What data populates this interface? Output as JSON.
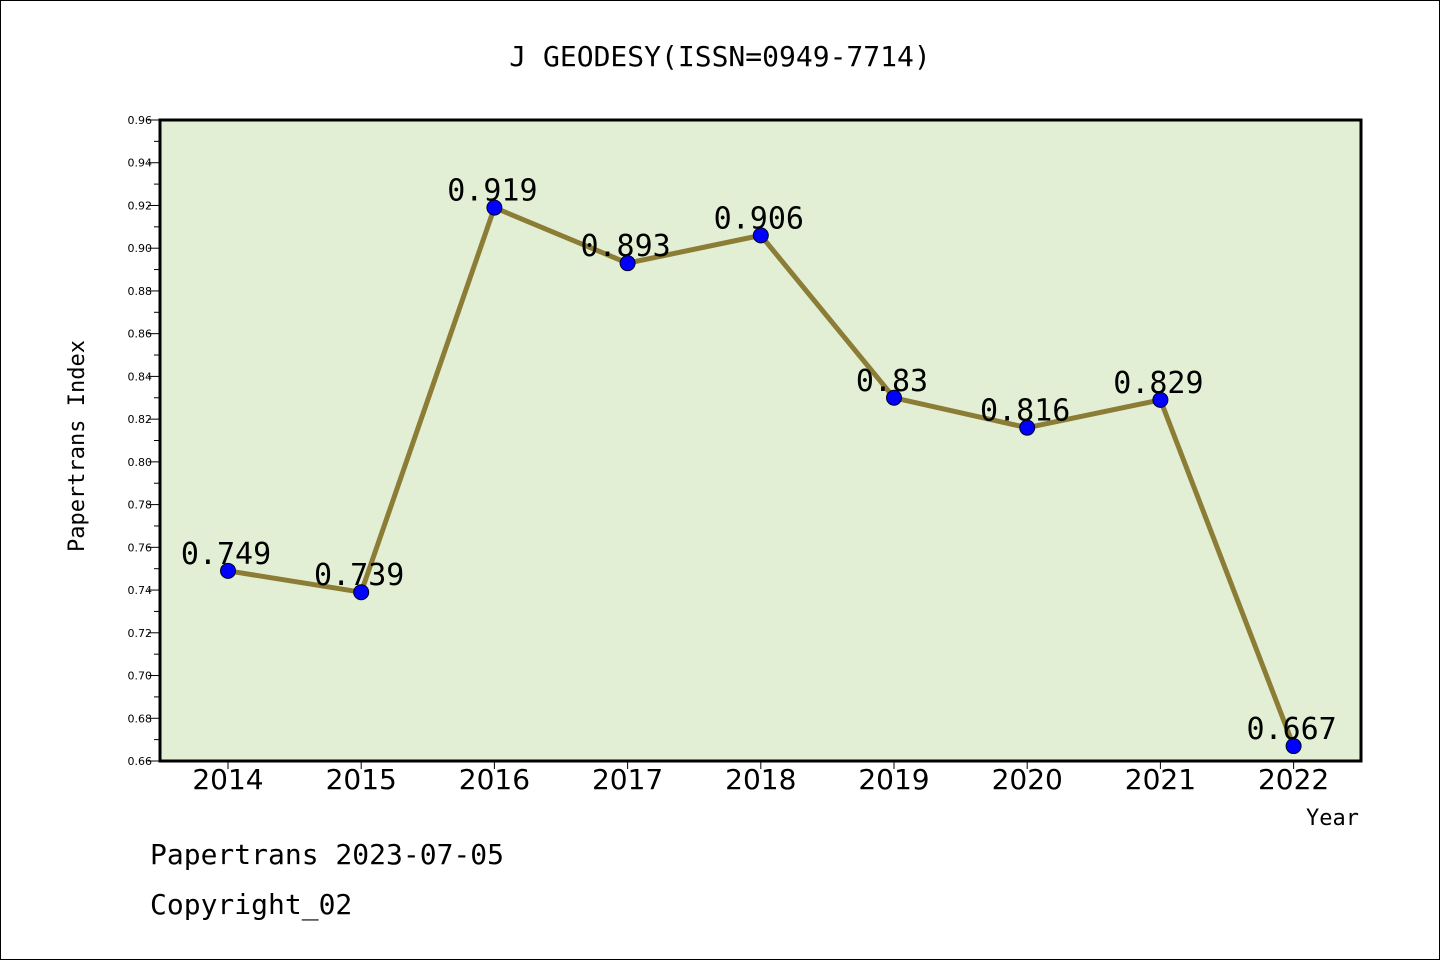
{
  "chart_data": {
    "type": "line",
    "title": "J GEODESY(ISSN=0949-7714)",
    "xlabel": "Year",
    "ylabel": "Papertrans Index",
    "categories": [
      "2014",
      "2015",
      "2016",
      "2017",
      "2018",
      "2019",
      "2020",
      "2021",
      "2022"
    ],
    "values": [
      0.749,
      0.739,
      0.919,
      0.893,
      0.906,
      0.83,
      0.816,
      0.829,
      0.667
    ],
    "data_labels": [
      "0.749",
      "0.739",
      "0.919",
      "0.893",
      "0.906",
      "0.83",
      "0.816",
      "0.829",
      "0.667"
    ],
    "ylim": [
      0.66,
      0.96
    ],
    "yticks": [
      "0.66",
      "0.68",
      "0.70",
      "0.72",
      "0.74",
      "0.76",
      "0.78",
      "0.80",
      "0.82",
      "0.84",
      "0.86",
      "0.88",
      "0.90",
      "0.92",
      "0.94",
      "0.96"
    ],
    "grid": false,
    "colors": {
      "plot_background": "#e2efd4",
      "line": "#8b7d35",
      "marker": "#0000ff"
    }
  },
  "footer": {
    "line1": "Papertrans 2023-07-05",
    "line2": "Copyright_02"
  }
}
